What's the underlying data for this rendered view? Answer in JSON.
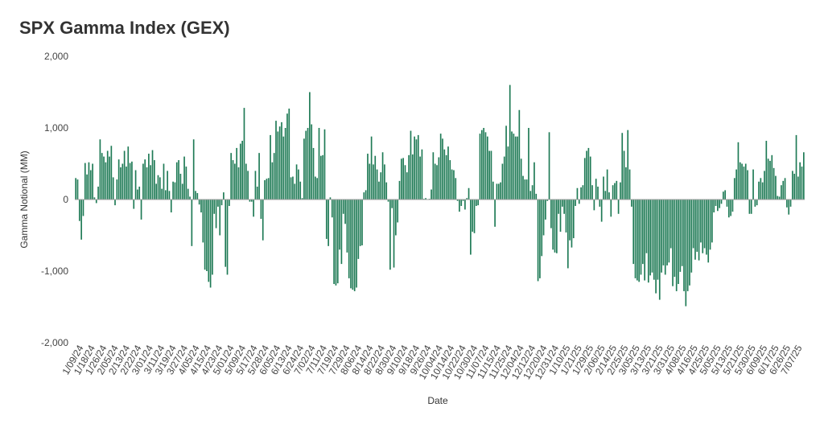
{
  "chart_data": {
    "type": "bar",
    "title": "SPX Gamma Index (GEX)",
    "xlabel": "Date",
    "ylabel": "Gamma Notional (MM)",
    "ylim": [
      -2000,
      2000
    ],
    "grid": false,
    "legend": "none",
    "bar_color": "#1e7a55",
    "y_ticks": [
      2000,
      1000,
      0,
      -1000,
      -2000
    ],
    "y_tick_labels": [
      "2,000",
      "1,000",
      "0",
      "-1,000",
      "-2,000"
    ],
    "x_tick_labels": [
      "1/09/24",
      "1/18/24",
      "1/26/24",
      "2/05/24",
      "2/13/24",
      "2/22/24",
      "3/01/24",
      "3/11/24",
      "3/19/24",
      "3/27/24",
      "4/05/24",
      "4/15/24",
      "4/23/24",
      "5/01/24",
      "5/09/24",
      "5/17/24",
      "5/28/24",
      "6/05/24",
      "6/13/24",
      "6/24/24",
      "7/02/24",
      "7/11/24",
      "7/19/24",
      "7/29/24",
      "8/06/24",
      "8/14/24",
      "8/22/24",
      "8/30/24",
      "9/10/24",
      "9/18/24",
      "9/26/24",
      "10/04/24",
      "10/14/24",
      "10/22/24",
      "10/30/24",
      "11/07/24",
      "11/15/24",
      "11/25/24",
      "12/04/24",
      "12/12/24",
      "12/20/24",
      "12/31/24",
      "1/10/25",
      "1/21/25",
      "1/29/25",
      "2/06/25",
      "2/14/25",
      "2/25/25",
      "3/05/25",
      "3/13/25",
      "3/21/25",
      "3/31/25",
      "4/08/25",
      "4/16/25",
      "4/25/25",
      "5/05/25",
      "5/13/25",
      "5/21/25",
      "5/30/25",
      "6/09/25",
      "6/17/25",
      "6/26/25",
      "7/07/25"
    ],
    "values": [
      300,
      280,
      -300,
      -560,
      -230,
      510,
      350,
      520,
      410,
      500,
      30,
      -50,
      180,
      840,
      650,
      600,
      520,
      680,
      600,
      750,
      310,
      -80,
      280,
      560,
      450,
      500,
      680,
      460,
      740,
      510,
      530,
      -130,
      410,
      140,
      180,
      -280,
      500,
      560,
      450,
      640,
      480,
      690,
      550,
      220,
      340,
      310,
      150,
      500,
      130,
      400,
      120,
      -180,
      250,
      240,
      520,
      550,
      360,
      220,
      600,
      460,
      150,
      40,
      -650,
      840,
      120,
      90,
      -70,
      -180,
      -600,
      -980,
      -1000,
      -1150,
      -1230,
      -1050,
      -200,
      -400,
      -100,
      -500,
      -80,
      100,
      -940,
      -1050,
      -90,
      650,
      550,
      500,
      720,
      450,
      780,
      820,
      1280,
      500,
      400,
      -30,
      -30,
      -240,
      400,
      180,
      650,
      -270,
      -570,
      270,
      290,
      300,
      900,
      520,
      650,
      1100,
      950,
      1020,
      1080,
      880,
      1000,
      1200,
      1270,
      310,
      320,
      220,
      490,
      420,
      250,
      20,
      850,
      960,
      1000,
      1500,
      1050,
      720,
      320,
      300,
      1000,
      610,
      620,
      980,
      -550,
      -650,
      30,
      -250,
      -1180,
      -1200,
      -1170,
      -700,
      -900,
      -200,
      -340,
      -740,
      -1100,
      -1240,
      -1260,
      -1280,
      -1230,
      -830,
      -650,
      -640,
      100,
      130,
      640,
      500,
      880,
      490,
      610,
      420,
      250,
      380,
      660,
      490,
      240,
      -30,
      -980,
      -120,
      -950,
      -500,
      -320,
      260,
      570,
      580,
      480,
      380,
      620,
      960,
      630,
      880,
      840,
      900,
      600,
      700,
      10,
      20,
      0,
      10,
      140,
      660,
      500,
      480,
      590,
      920,
      850,
      700,
      620,
      740,
      550,
      420,
      410,
      300,
      -20,
      -170,
      -90,
      -20,
      -140,
      20,
      160,
      -770,
      -450,
      -470,
      -90,
      -80,
      920,
      970,
      1000,
      940,
      880,
      680,
      680,
      250,
      -380,
      220,
      220,
      240,
      500,
      600,
      1030,
      740,
      1600,
      950,
      920,
      880,
      880,
      1250,
      570,
      330,
      280,
      280,
      1000,
      120,
      200,
      520,
      80,
      -1140,
      -1100,
      -790,
      -500,
      -280,
      -20,
      940,
      -400,
      -700,
      -740,
      -750,
      -200,
      -450,
      -100,
      -200,
      -460,
      -960,
      -570,
      -670,
      -540,
      -90,
      160,
      -60,
      170,
      200,
      580,
      680,
      720,
      600,
      200,
      -150,
      290,
      180,
      -100,
      -310,
      320,
      120,
      420,
      100,
      -240,
      200,
      230,
      260,
      -200,
      240,
      930,
      680,
      450,
      970,
      420,
      -100,
      -900,
      -1100,
      -1130,
      -1150,
      -1050,
      -900,
      -1130,
      -750,
      -1160,
      -1060,
      -1020,
      -1120,
      -1310,
      -1120,
      -1400,
      -1020,
      -920,
      -1050,
      -920,
      -880,
      -680,
      -1210,
      -1080,
      -1280,
      -1180,
      -1010,
      -930,
      -1280,
      -1490,
      -1280,
      -1200,
      -1020,
      -680,
      -840,
      -730,
      -850,
      -600,
      -750,
      -680,
      -770,
      -880,
      -700,
      -600,
      -180,
      -90,
      -160,
      -120,
      -60,
      110,
      130,
      -100,
      -250,
      -230,
      -170,
      300,
      420,
      800,
      520,
      500,
      460,
      500,
      410,
      -200,
      -200,
      420,
      -100,
      -80,
      250,
      300,
      240,
      400,
      820,
      570,
      540,
      620,
      440,
      330,
      50,
      40,
      200,
      260,
      300,
      -110,
      -210,
      -100,
      400,
      360,
      900,
      320,
      520,
      460,
      660
    ]
  }
}
